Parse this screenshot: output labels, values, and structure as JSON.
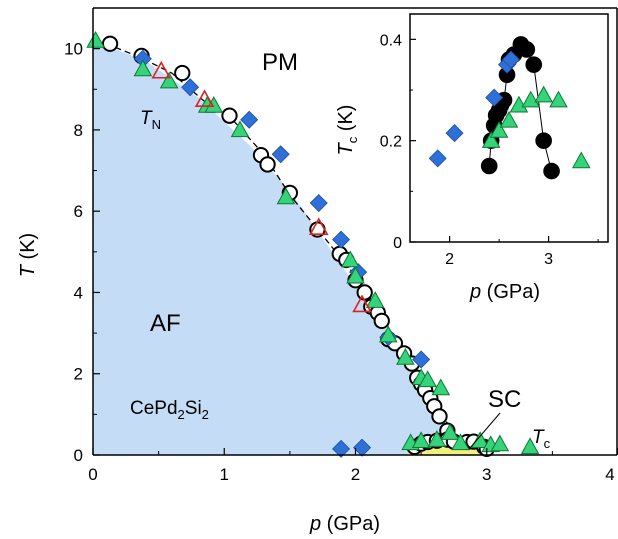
{
  "chart_data": [
    {
      "type": "scatter",
      "xlabel_italic": "p",
      "xlabel_unit": "(GPa)",
      "ylabel": "T",
      "ylabel_unit": "(K)",
      "xlim": [
        0,
        4
      ],
      "ylim": [
        0,
        11
      ],
      "xticks": [
        "0",
        "1",
        "2",
        "3",
        "4"
      ],
      "yticks": [
        "0",
        "2",
        "4",
        "6",
        "8",
        "10"
      ],
      "annotations": {
        "pm": "PM",
        "af": "AF",
        "sc": "SC",
        "tn_main": "T",
        "tn_sub": "N",
        "tc_main": "T",
        "tc_sub": "c",
        "compound_a": "CePd",
        "compound_b": "2",
        "compound_c": "Si",
        "compound_d": "2"
      },
      "colors": {
        "af_region": "#c5dcf6",
        "sc_region": "#f1f07a",
        "circle": "#000000",
        "diamond": "#2f6fd8",
        "triangle_green": "#37d37a",
        "triangle_red": "#e02020"
      },
      "af_boundary": [
        [
          0,
          10.2
        ],
        [
          0.4,
          9.7
        ],
        [
          0.8,
          8.8
        ],
        [
          1.2,
          7.6
        ],
        [
          1.5,
          6.5
        ],
        [
          1.8,
          5.1
        ],
        [
          2.1,
          3.7
        ],
        [
          2.35,
          2.6
        ],
        [
          2.55,
          1.6
        ],
        [
          2.7,
          0.6
        ],
        [
          2.8,
          0
        ]
      ],
      "sc_region": [
        [
          2.4,
          0
        ],
        [
          2.4,
          0.25
        ],
        [
          2.6,
          0.33
        ],
        [
          2.8,
          0.35
        ],
        [
          2.95,
          0.22
        ],
        [
          3.0,
          0
        ]
      ],
      "tn_line": [
        [
          0.1,
          10.12
        ],
        [
          0.35,
          9.8
        ],
        [
          0.6,
          9.4
        ],
        [
          0.85,
          8.7
        ],
        [
          1.05,
          8.3
        ],
        [
          1.3,
          7.4
        ],
        [
          1.5,
          6.4
        ],
        [
          1.7,
          5.6
        ],
        [
          1.9,
          4.8
        ],
        [
          2.05,
          4.2
        ],
        [
          2.2,
          3.4
        ],
        [
          2.35,
          2.6
        ],
        [
          2.45,
          2.0
        ],
        [
          2.55,
          1.6
        ],
        [
          2.65,
          1.0
        ],
        [
          2.8,
          0.35
        ],
        [
          2.95,
          0.15
        ]
      ],
      "series": [
        {
          "marker": "open-circle",
          "points": [
            [
              0.13,
              10.12
            ],
            [
              0.37,
              9.82
            ],
            [
              0.68,
              9.4
            ],
            [
              1.04,
              8.35
            ],
            [
              1.28,
              7.38
            ],
            [
              1.33,
              7.15
            ],
            [
              1.5,
              6.45
            ],
            [
              1.71,
              5.55
            ],
            [
              1.88,
              4.95
            ],
            [
              1.93,
              4.8
            ],
            [
              2.0,
              4.3
            ],
            [
              2.07,
              4.0
            ],
            [
              2.12,
              3.65
            ],
            [
              2.17,
              3.5
            ],
            [
              2.2,
              3.3
            ],
            [
              2.25,
              2.85
            ],
            [
              2.3,
              2.75
            ],
            [
              2.37,
              2.5
            ],
            [
              2.43,
              2.25
            ],
            [
              2.47,
              1.9
            ],
            [
              2.5,
              1.75
            ],
            [
              2.53,
              1.6
            ],
            [
              2.57,
              1.4
            ],
            [
              2.6,
              1.2
            ],
            [
              2.64,
              0.95
            ],
            [
              2.7,
              0.6
            ],
            [
              2.45,
              0.2
            ],
            [
              2.5,
              0.28
            ],
            [
              2.55,
              0.32
            ],
            [
              2.62,
              0.35
            ],
            [
              2.7,
              0.38
            ],
            [
              2.75,
              0.33
            ],
            [
              2.85,
              0.32
            ],
            [
              2.9,
              0.33
            ],
            [
              2.98,
              0.2
            ],
            [
              3.0,
              0.15
            ]
          ]
        },
        {
          "marker": "filled-diamond",
          "points": [
            [
              0.38,
              9.75
            ],
            [
              0.74,
              9.05
            ],
            [
              1.19,
              8.25
            ],
            [
              1.43,
              7.4
            ],
            [
              1.72,
              6.2
            ],
            [
              1.89,
              5.3
            ],
            [
              2.02,
              4.5
            ],
            [
              2.25,
              2.9
            ],
            [
              2.5,
              2.35
            ],
            [
              1.89,
              0.15
            ],
            [
              2.05,
              0.18
            ]
          ]
        },
        {
          "marker": "triangle-green",
          "points": [
            [
              0.02,
              10.2
            ],
            [
              0.38,
              9.5
            ],
            [
              0.58,
              9.2
            ],
            [
              0.87,
              8.6
            ],
            [
              0.92,
              8.6
            ],
            [
              1.12,
              8.0
            ],
            [
              1.47,
              6.35
            ],
            [
              1.96,
              4.8
            ],
            [
              2.0,
              4.4
            ],
            [
              2.15,
              3.8
            ],
            [
              2.25,
              2.95
            ],
            [
              2.38,
              2.4
            ],
            [
              2.5,
              1.9
            ],
            [
              2.55,
              1.85
            ],
            [
              2.65,
              1.65
            ],
            [
              2.72,
              0.55
            ],
            [
              2.42,
              0.3
            ],
            [
              2.5,
              0.35
            ],
            [
              2.62,
              0.38
            ],
            [
              2.8,
              0.3
            ],
            [
              2.95,
              0.35
            ],
            [
              3.03,
              0.25
            ],
            [
              3.1,
              0.27
            ],
            [
              3.33,
              0.2
            ]
          ]
        },
        {
          "marker": "triangle-red",
          "points": [
            [
              0.52,
              9.45
            ],
            [
              0.85,
              8.75
            ],
            [
              1.72,
              5.6
            ],
            [
              2.05,
              3.7
            ]
          ]
        }
      ]
    },
    {
      "type": "scatter",
      "xlabel_italic": "p",
      "xlabel_unit": "(GPa)",
      "ylabel_italic": "T",
      "ylabel_sub": "c",
      "ylabel_unit": "(K)",
      "xlim": [
        1.6,
        3.6
      ],
      "ylim": [
        0,
        0.45
      ],
      "xticks": [
        "2",
        "3"
      ],
      "yticks": [
        "0",
        "0.2",
        "0.4"
      ],
      "series": [
        {
          "marker": "filled-circle",
          "connected": true,
          "points": [
            [
              2.4,
              0.15
            ],
            [
              2.42,
              0.2
            ],
            [
              2.45,
              0.23
            ],
            [
              2.47,
              0.25
            ],
            [
              2.5,
              0.26
            ],
            [
              2.52,
              0.27
            ],
            [
              2.55,
              0.28
            ],
            [
              2.58,
              0.33
            ],
            [
              2.6,
              0.36
            ],
            [
              2.65,
              0.37
            ],
            [
              2.72,
              0.39
            ],
            [
              2.78,
              0.38
            ],
            [
              2.85,
              0.35
            ],
            [
              2.95,
              0.2
            ],
            [
              3.03,
              0.14
            ]
          ]
        },
        {
          "marker": "filled-diamond",
          "points": [
            [
              1.88,
              0.165
            ],
            [
              2.05,
              0.215
            ],
            [
              2.45,
              0.285
            ],
            [
              2.58,
              0.35
            ],
            [
              2.62,
              0.36
            ]
          ]
        },
        {
          "marker": "triangle-green",
          "points": [
            [
              2.42,
              0.2
            ],
            [
              2.5,
              0.22
            ],
            [
              2.6,
              0.24
            ],
            [
              2.7,
              0.27
            ],
            [
              2.82,
              0.28
            ],
            [
              2.95,
              0.29
            ],
            [
              3.1,
              0.28
            ],
            [
              3.33,
              0.16
            ]
          ]
        }
      ]
    }
  ]
}
